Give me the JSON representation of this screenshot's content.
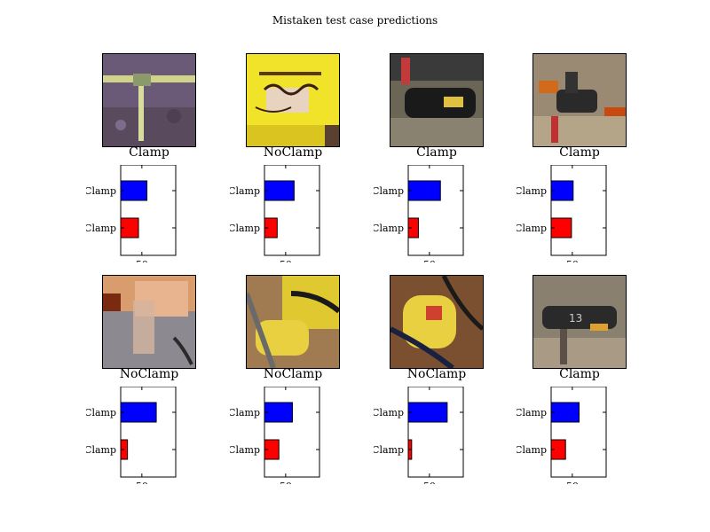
{
  "title": "Mistaken test case predictions",
  "colors": {
    "top_bar": "#0000ff",
    "bottom_bar": "#ff0000",
    "frame": "#000000"
  },
  "chart_data": [
    {
      "type": "bar",
      "orientation": "horizontal",
      "true_label": "Clamp",
      "categories": [
        "Clamp",
        "NoClamp"
      ],
      "values": [
        46,
        56
      ],
      "colors": [
        "#ff0000",
        "#0000ff"
      ],
      "xticks": [
        50
      ],
      "xlim": [
        25,
        90
      ]
    },
    {
      "type": "bar",
      "orientation": "horizontal",
      "true_label": "NoClamp",
      "categories": [
        "NoClamp",
        "Clamp"
      ],
      "values": [
        40,
        60
      ],
      "colors": [
        "#ff0000",
        "#0000ff"
      ],
      "xticks": [
        50
      ],
      "xlim": [
        25,
        90
      ]
    },
    {
      "type": "bar",
      "orientation": "horizontal",
      "true_label": "Clamp",
      "categories": [
        "Clamp",
        "NoClamp"
      ],
      "values": [
        37,
        63
      ],
      "colors": [
        "#ff0000",
        "#0000ff"
      ],
      "xticks": [
        50
      ],
      "xlim": [
        25,
        90
      ]
    },
    {
      "type": "bar",
      "orientation": "horizontal",
      "true_label": "Clamp",
      "categories": [
        "Clamp",
        "NoClamp"
      ],
      "values": [
        49,
        51
      ],
      "colors": [
        "#ff0000",
        "#0000ff"
      ],
      "xticks": [
        50
      ],
      "xlim": [
        25,
        90
      ]
    },
    {
      "type": "bar",
      "orientation": "horizontal",
      "true_label": "NoClamp",
      "categories": [
        "NoClamp",
        "Clamp"
      ],
      "values": [
        33,
        67
      ],
      "colors": [
        "#ff0000",
        "#0000ff"
      ],
      "xticks": [
        50
      ],
      "xlim": [
        25,
        90
      ]
    },
    {
      "type": "bar",
      "orientation": "horizontal",
      "true_label": "NoClamp",
      "categories": [
        "NoClamp",
        "Clamp"
      ],
      "values": [
        42,
        58
      ],
      "colors": [
        "#ff0000",
        "#0000ff"
      ],
      "xticks": [
        50
      ],
      "xlim": [
        25,
        90
      ]
    },
    {
      "type": "bar",
      "orientation": "horizontal",
      "true_label": "NoClamp",
      "categories": [
        "NoClamp",
        "Clamp"
      ],
      "values": [
        29,
        71
      ],
      "colors": [
        "#ff0000",
        "#0000ff"
      ],
      "xticks": [
        50
      ],
      "xlim": [
        25,
        90
      ]
    },
    {
      "type": "bar",
      "orientation": "horizontal",
      "true_label": "Clamp",
      "categories": [
        "Clamp",
        "NoClamp"
      ],
      "values": [
        42,
        58
      ],
      "colors": [
        "#ff0000",
        "#0000ff"
      ],
      "xticks": [
        50
      ],
      "xlim": [
        25,
        90
      ]
    }
  ]
}
